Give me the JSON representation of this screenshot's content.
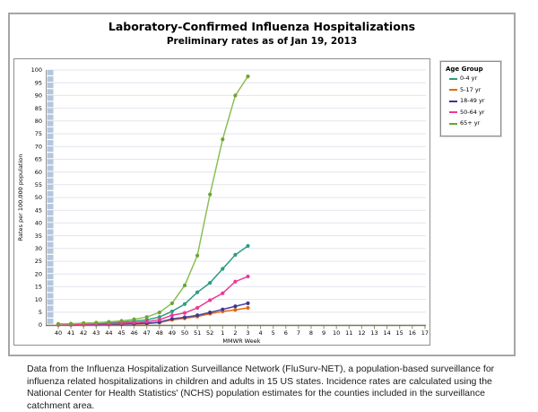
{
  "panel": {
    "title": "Laboratory-Confirmed Influenza Hospitalizations",
    "subtitle": "Preliminary rates as of Jan 19, 2013"
  },
  "legend": {
    "title": "Age Group",
    "items": [
      {
        "label": "0-4 yr",
        "color": "#2d9c82"
      },
      {
        "label": "5-17 yr",
        "color": "#e06a10"
      },
      {
        "label": "18-49 yr",
        "color": "#3d3693"
      },
      {
        "label": "50-64 yr",
        "color": "#ec3897"
      },
      {
        "label": "65+ yr",
        "color": "#6aa62f"
      }
    ]
  },
  "chart_data": {
    "type": "line",
    "title": "Laboratory-Confirmed Influenza Hospitalizations",
    "subtitle": "Preliminary rates as of Jan 19, 2013",
    "xlabel": "MMWR Week",
    "ylabel": "Rates per 100,000 population",
    "ylim": [
      0,
      100
    ],
    "ytick_step": 5,
    "grid": true,
    "legend_position": "right-outside",
    "categories": [
      "40",
      "41",
      "42",
      "43",
      "44",
      "45",
      "46",
      "47",
      "48",
      "49",
      "50",
      "51",
      "52",
      "1",
      "2",
      "3",
      "4",
      "5",
      "6",
      "7",
      "8",
      "9",
      "10",
      "11",
      "12",
      "13",
      "14",
      "15",
      "16",
      "17"
    ],
    "series": [
      {
        "name": "0-4 yr",
        "color": "#2d9c82",
        "line_color": "#2d9c82",
        "values": [
          0.3,
          0.4,
          0.5,
          0.7,
          0.9,
          1.1,
          1.5,
          2.0,
          3.1,
          5.3,
          8.2,
          12.8,
          16.5,
          22.0,
          27.5,
          31.0
        ]
      },
      {
        "name": "5-17 yr",
        "color": "#e06a10",
        "line_color": "#e06a10",
        "values": [
          0.1,
          0.1,
          0.1,
          0.2,
          0.2,
          0.3,
          0.4,
          0.5,
          0.9,
          2.0,
          2.6,
          3.3,
          4.4,
          5.3,
          5.9,
          6.7
        ]
      },
      {
        "name": "18-49 yr",
        "color": "#3d3693",
        "line_color": "#4a42a0",
        "values": [
          0.1,
          0.1,
          0.2,
          0.2,
          0.3,
          0.4,
          0.5,
          0.7,
          1.1,
          2.4,
          3.0,
          3.8,
          4.9,
          6.1,
          7.3,
          8.5
        ]
      },
      {
        "name": "50-64 yr",
        "color": "#ec3897",
        "line_color": "#ec3897",
        "values": [
          0.1,
          0.2,
          0.3,
          0.4,
          0.5,
          0.7,
          0.9,
          1.3,
          2.0,
          3.8,
          4.7,
          6.7,
          9.7,
          12.4,
          17.0,
          19.0
        ]
      },
      {
        "name": "65+ yr",
        "color": "#6aa62f",
        "line_color": "#8cbf55",
        "values": [
          0.4,
          0.5,
          0.7,
          0.9,
          1.2,
          1.6,
          2.2,
          3.1,
          4.9,
          8.5,
          15.5,
          27.2,
          51.2,
          72.8,
          90.0,
          97.5
        ]
      }
    ],
    "colors": {
      "gridline": "#e2e5ee",
      "axis": "#77765f",
      "tick": "#8f8f66",
      "y_axis_line": "#9a9a9a",
      "left_strip_squares": "#b3c6de"
    }
  },
  "caption": "Data from the Influenza Hospitalization Surveillance Network (FluSurv-NET), a population-based surveillance for influenza related hospitalizations in children and adults in 15 US states.  Incidence rates are calculated using the National Center for Health Statistics' (NCHS) population estimates for the counties included in the surveillance catchment area."
}
